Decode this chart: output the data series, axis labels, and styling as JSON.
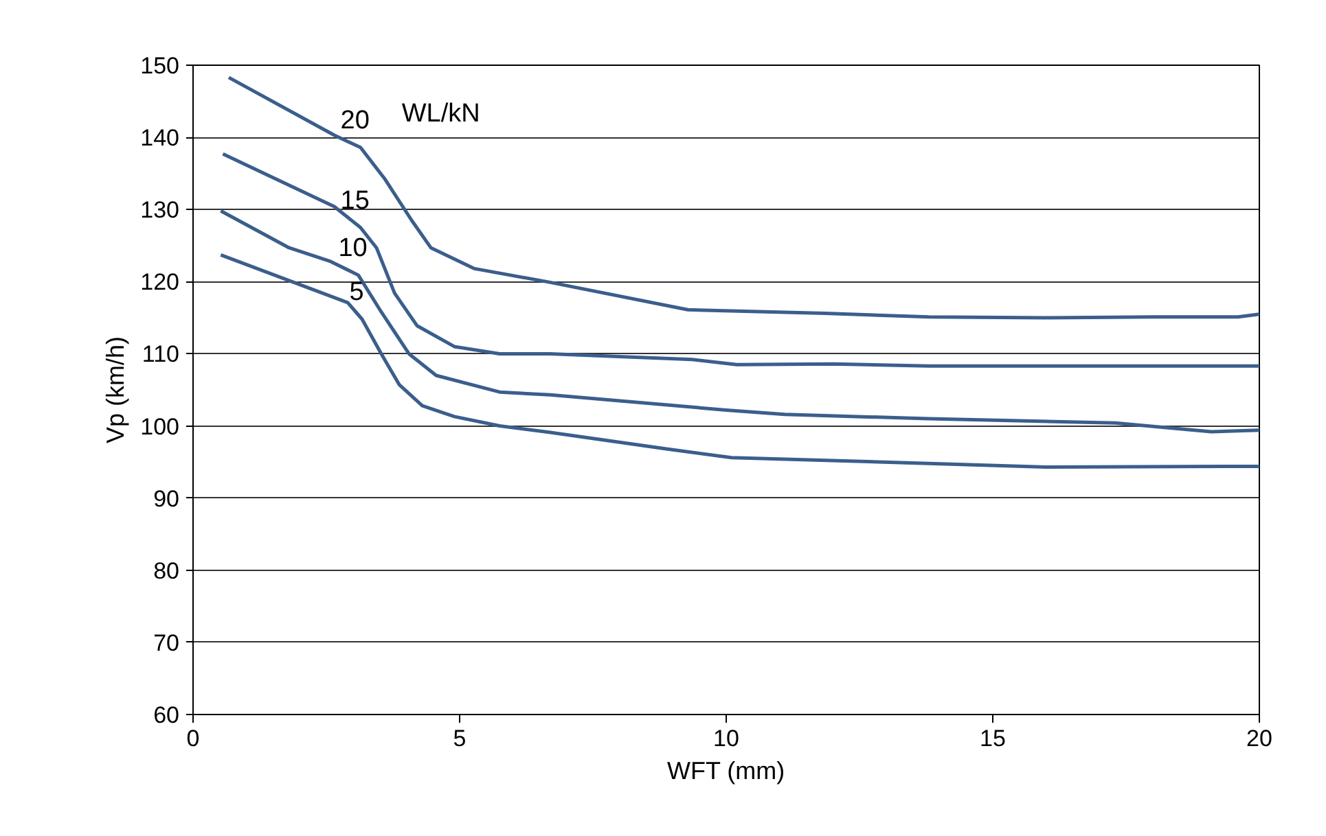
{
  "chart_data": {
    "type": "line",
    "xlabel": "WFT (mm)",
    "ylabel": "Vp (km/h)",
    "xlim": [
      0,
      20
    ],
    "xticks": [
      0,
      5,
      10,
      15,
      20
    ],
    "ylim": [
      60,
      150
    ],
    "yticks": [
      60,
      70,
      80,
      90,
      100,
      110,
      120,
      130,
      140,
      150
    ],
    "grid": "y",
    "legend": false,
    "marker": "none",
    "line_style": "solid",
    "annotations": [
      "WL/kN"
    ],
    "series": [
      {
        "name": "20",
        "color": "#3b5e8c",
        "x": [
          0.67,
          2.65,
          3.14,
          3.6,
          4.1,
          4.46,
          5.28,
          6.7,
          9.28,
          11.86,
          13.8,
          16.0,
          18.0,
          19.6,
          20
        ],
        "values": [
          148.3,
          140.3,
          138.6,
          134.2,
          128.5,
          124.7,
          121.8,
          119.9,
          116.1,
          115.6,
          115.1,
          115.0,
          115.1,
          115.1,
          115.5
        ]
      },
      {
        "name": "15",
        "color": "#3b5e8c",
        "x": [
          0.56,
          2.65,
          3.14,
          3.44,
          3.78,
          4.2,
          4.9,
          5.75,
          6.7,
          9.36,
          10.2,
          12.0,
          13.8,
          20
        ],
        "values": [
          137.7,
          130.4,
          127.5,
          124.7,
          118.4,
          113.9,
          111.0,
          110.0,
          110.0,
          109.2,
          108.5,
          108.6,
          108.3,
          108.3
        ]
      },
      {
        "name": "10",
        "color": "#3b5e8c",
        "x": [
          0.52,
          1.8,
          2.58,
          3.1,
          3.53,
          4.05,
          4.56,
          5.75,
          6.7,
          10.0,
          11.1,
          13.8,
          17.3,
          19.1,
          20
        ],
        "values": [
          129.8,
          124.7,
          122.8,
          120.9,
          115.8,
          110.0,
          107.0,
          104.7,
          104.3,
          102.2,
          101.6,
          101.0,
          100.4,
          99.2,
          99.4
        ]
      },
      {
        "name": "5",
        "color": "#3b5e8c",
        "x": [
          0.52,
          2.9,
          3.17,
          3.53,
          3.87,
          4.3,
          4.9,
          5.75,
          6.7,
          8.9,
          10.1,
          13.8,
          16.0,
          20
        ],
        "values": [
          123.7,
          117.1,
          114.8,
          110.0,
          105.7,
          102.8,
          101.3,
          100.0,
          99.1,
          96.8,
          95.6,
          94.8,
          94.3,
          94.4
        ]
      }
    ]
  }
}
